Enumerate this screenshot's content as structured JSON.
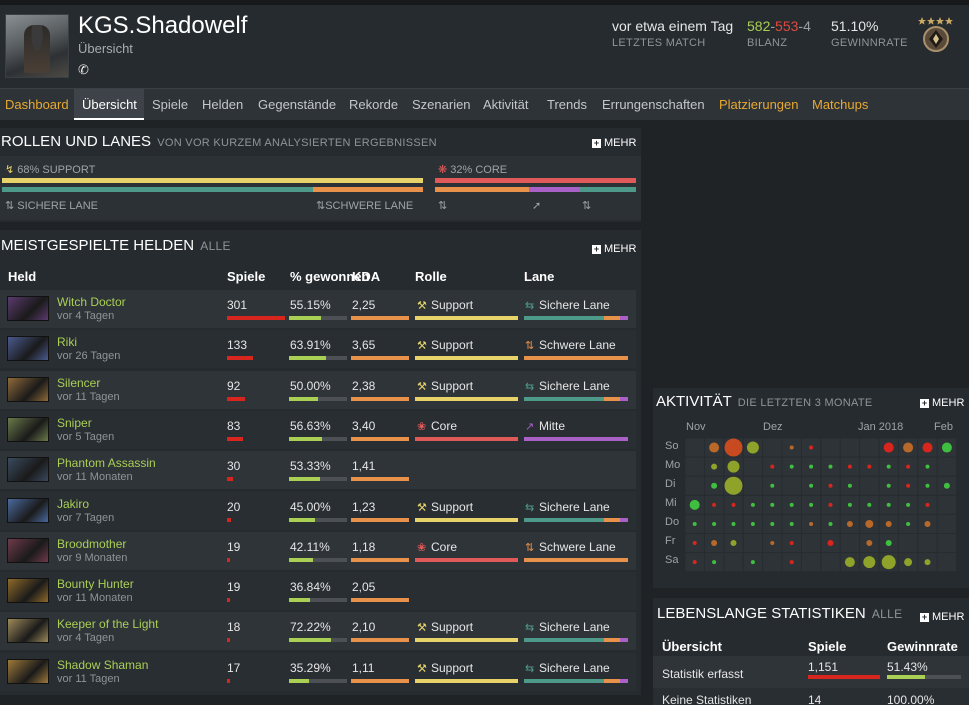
{
  "player": {
    "name": "KGS.Shadowelf",
    "subtitle": "Übersicht",
    "last_match": {
      "value": "vor etwa einem Tag",
      "label": "LETZTES MATCH"
    },
    "record": {
      "wins": "582",
      "losses": "553",
      "abandons": "4",
      "label": "BILANZ"
    },
    "winrate": {
      "value": "51.10%",
      "label": "GEWINNRATE"
    }
  },
  "nav": {
    "tabs": [
      "Dashboard",
      "Übersicht",
      "Spiele",
      "Helden",
      "Gegenstände",
      "Rekorde",
      "Szenarien",
      "Aktivität",
      "Trends",
      "Errungenschaften",
      "Platzierungen",
      "Matchups"
    ],
    "active": "Übersicht"
  },
  "roles": {
    "title": "ROLLEN UND LANES",
    "subtitle": "VON VOR KURZEM ANALYSIERTEN ERGEBNISSEN",
    "more": "MEHR",
    "support_label": "68% SUPPORT",
    "core_label": "32% CORE",
    "support_pct": 68,
    "core_pct": 32,
    "lane_safe": "SICHERE LANE",
    "lane_hard": "SCHWERE LANE",
    "colors": {
      "support": "#e8d36b",
      "core": "#e05a5a",
      "safe": "#4e9a8a",
      "hard": "#e8914a",
      "mid": "#a961c7"
    }
  },
  "heroes": {
    "title": "MEISTGESPIELTE HELDEN",
    "subtitle": "ALLE",
    "more": "MEHR",
    "headers": {
      "hero": "Held",
      "games": "Spiele",
      "winrate": "% gewonnen",
      "kda": "KDA",
      "role": "Rolle",
      "lane": "Lane"
    },
    "rows": [
      {
        "name": "Witch Doctor",
        "ago": "vor 4 Tagen",
        "games": "301",
        "games_frac": 1.0,
        "winrate": "55.15%",
        "win_frac": 0.55,
        "kda": "2,25",
        "role": "Support",
        "lane": "Sichere Lane",
        "role_icon": "support-icon",
        "lane_icon": "safe-lane-icon",
        "icon_color": "#5a3a6e"
      },
      {
        "name": "Riki",
        "ago": "vor 26 Tagen",
        "games": "133",
        "games_frac": 0.44,
        "winrate": "63.91%",
        "win_frac": 0.64,
        "kda": "3,65",
        "role": "Support",
        "lane": "Schwere Lane",
        "role_icon": "support-icon",
        "lane_icon": "hard-lane-icon",
        "icon_color": "#4a5a8e"
      },
      {
        "name": "Silencer",
        "ago": "vor 11 Tagen",
        "games": "92",
        "games_frac": 0.31,
        "winrate": "50.00%",
        "win_frac": 0.5,
        "kda": "2,38",
        "role": "Support",
        "lane": "Sichere Lane",
        "role_icon": "support-icon",
        "lane_icon": "safe-lane-icon",
        "icon_color": "#8e6a3a"
      },
      {
        "name": "Sniper",
        "ago": "vor 5 Tagen",
        "games": "83",
        "games_frac": 0.28,
        "winrate": "56.63%",
        "win_frac": 0.57,
        "kda": "3,40",
        "role": "Core",
        "lane": "Mitte",
        "role_icon": "core-icon",
        "lane_icon": "mid-lane-icon",
        "icon_color": "#6a7a4a"
      },
      {
        "name": "Phantom Assassin",
        "ago": "vor 11 Monaten",
        "games": "30",
        "games_frac": 0.1,
        "winrate": "53.33%",
        "win_frac": 0.53,
        "kda": "1,41",
        "role": "",
        "lane": "",
        "role_icon": "",
        "lane_icon": "",
        "icon_color": "#3a4a5e"
      },
      {
        "name": "Jakiro",
        "ago": "vor 7 Tagen",
        "games": "20",
        "games_frac": 0.07,
        "winrate": "45.00%",
        "win_frac": 0.45,
        "kda": "1,23",
        "role": "Support",
        "lane": "Sichere Lane",
        "role_icon": "support-icon",
        "lane_icon": "safe-lane-icon",
        "icon_color": "#4a6a9e"
      },
      {
        "name": "Broodmother",
        "ago": "vor 9 Monaten",
        "games": "19",
        "games_frac": 0.06,
        "winrate": "42.11%",
        "win_frac": 0.42,
        "kda": "1,18",
        "role": "Core",
        "lane": "Schwere Lane",
        "role_icon": "core-icon",
        "lane_icon": "hard-lane-icon",
        "icon_color": "#6e3a4a"
      },
      {
        "name": "Bounty Hunter",
        "ago": "vor 11 Monaten",
        "games": "19",
        "games_frac": 0.06,
        "winrate": "36.84%",
        "win_frac": 0.37,
        "kda": "2,05",
        "role": "",
        "lane": "",
        "role_icon": "",
        "lane_icon": "",
        "icon_color": "#8e6a2a"
      },
      {
        "name": "Keeper of the Light",
        "ago": "vor 4 Tagen",
        "games": "18",
        "games_frac": 0.06,
        "winrate": "72.22%",
        "win_frac": 0.72,
        "kda": "2,10",
        "role": "Support",
        "lane": "Sichere Lane",
        "role_icon": "support-icon",
        "lane_icon": "safe-lane-icon",
        "icon_color": "#9e8a5a"
      },
      {
        "name": "Shadow Shaman",
        "ago": "vor 11 Tagen",
        "games": "17",
        "games_frac": 0.06,
        "winrate": "35.29%",
        "win_frac": 0.35,
        "kda": "1,11",
        "role": "Support",
        "lane": "Sichere Lane",
        "role_icon": "support-icon",
        "lane_icon": "safe-lane-icon",
        "icon_color": "#9e7a3a"
      }
    ]
  },
  "activity": {
    "title": "AKTIVITÄT",
    "subtitle": "DIE LETZTEN 3 MONATE",
    "more": "MEHR",
    "days": [
      "So",
      "Mo",
      "Di",
      "Mi",
      "Do",
      "Fr",
      "Sa"
    ],
    "months": [
      "Nov",
      "Dez",
      "Jan 2018",
      "Feb"
    ]
  },
  "lifetime": {
    "title": "LEBENSLANGE STATISTIKEN",
    "subtitle": "ALLE",
    "more": "MEHR",
    "headers": {
      "overview": "Übersicht",
      "games": "Spiele",
      "winrate": "Gewinnrate"
    },
    "rows": [
      {
        "label": "Statistik erfasst",
        "games": "1,151",
        "winrate": "51.43%"
      },
      {
        "label": "Keine Statistiken",
        "games": "14",
        "winrate": "100.00%"
      }
    ]
  }
}
